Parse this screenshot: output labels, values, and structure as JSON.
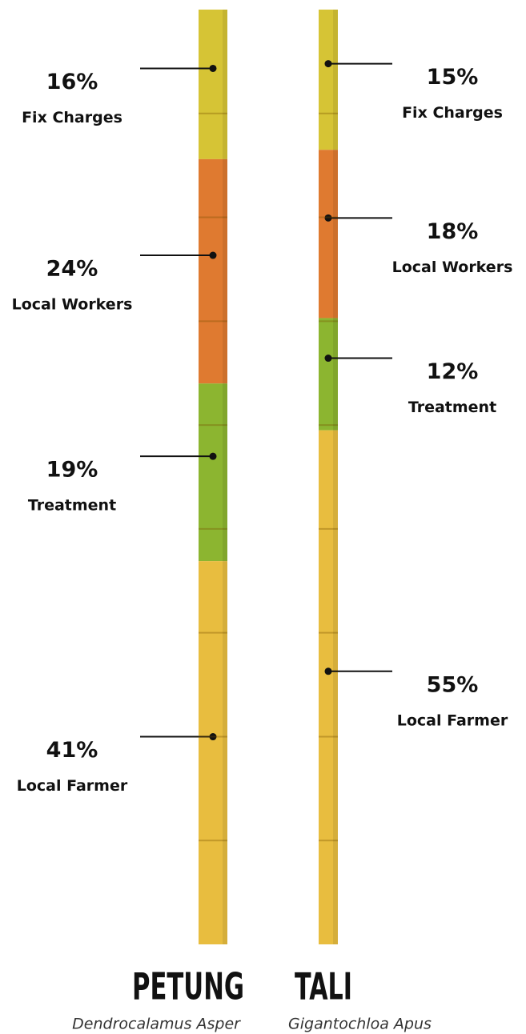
{
  "chart_data": [
    {
      "type": "stacked_bar",
      "title": "PETUNG",
      "subtitle": "Dendrocalamus Asper",
      "series": [
        {
          "name": "Fix Charges",
          "color": "#d6c435",
          "values": [
            16
          ],
          "value_labels": [
            "16%"
          ]
        },
        {
          "name": "Local Workers",
          "color": "#df7a30",
          "values": [
            24
          ],
          "value_labels": [
            "24%"
          ]
        },
        {
          "name": "Treatment",
          "color": "#8cb530",
          "values": [
            19
          ],
          "value_labels": [
            "19%"
          ]
        },
        {
          "name": "Local Farmer",
          "color": "#e8bd3f",
          "values": [
            41
          ],
          "value_labels": [
            "41%"
          ]
        }
      ]
    },
    {
      "type": "stacked_bar",
      "title": "TALI",
      "subtitle": "Gigantochloa Apus",
      "series": [
        {
          "name": "Fix Charges",
          "color": "#d6c435",
          "values": [
            15
          ],
          "value_labels": [
            "15%"
          ]
        },
        {
          "name": "Local Workers",
          "color": "#df7a30",
          "values": [
            18
          ],
          "value_labels": [
            "18%"
          ]
        },
        {
          "name": "Treatment",
          "color": "#8cb530",
          "values": [
            12
          ],
          "value_labels": [
            "12%"
          ]
        },
        {
          "name": "Local Farmer",
          "color": "#e8bd3f",
          "values": [
            55
          ],
          "value_labels": [
            "55%"
          ]
        }
      ]
    }
  ]
}
